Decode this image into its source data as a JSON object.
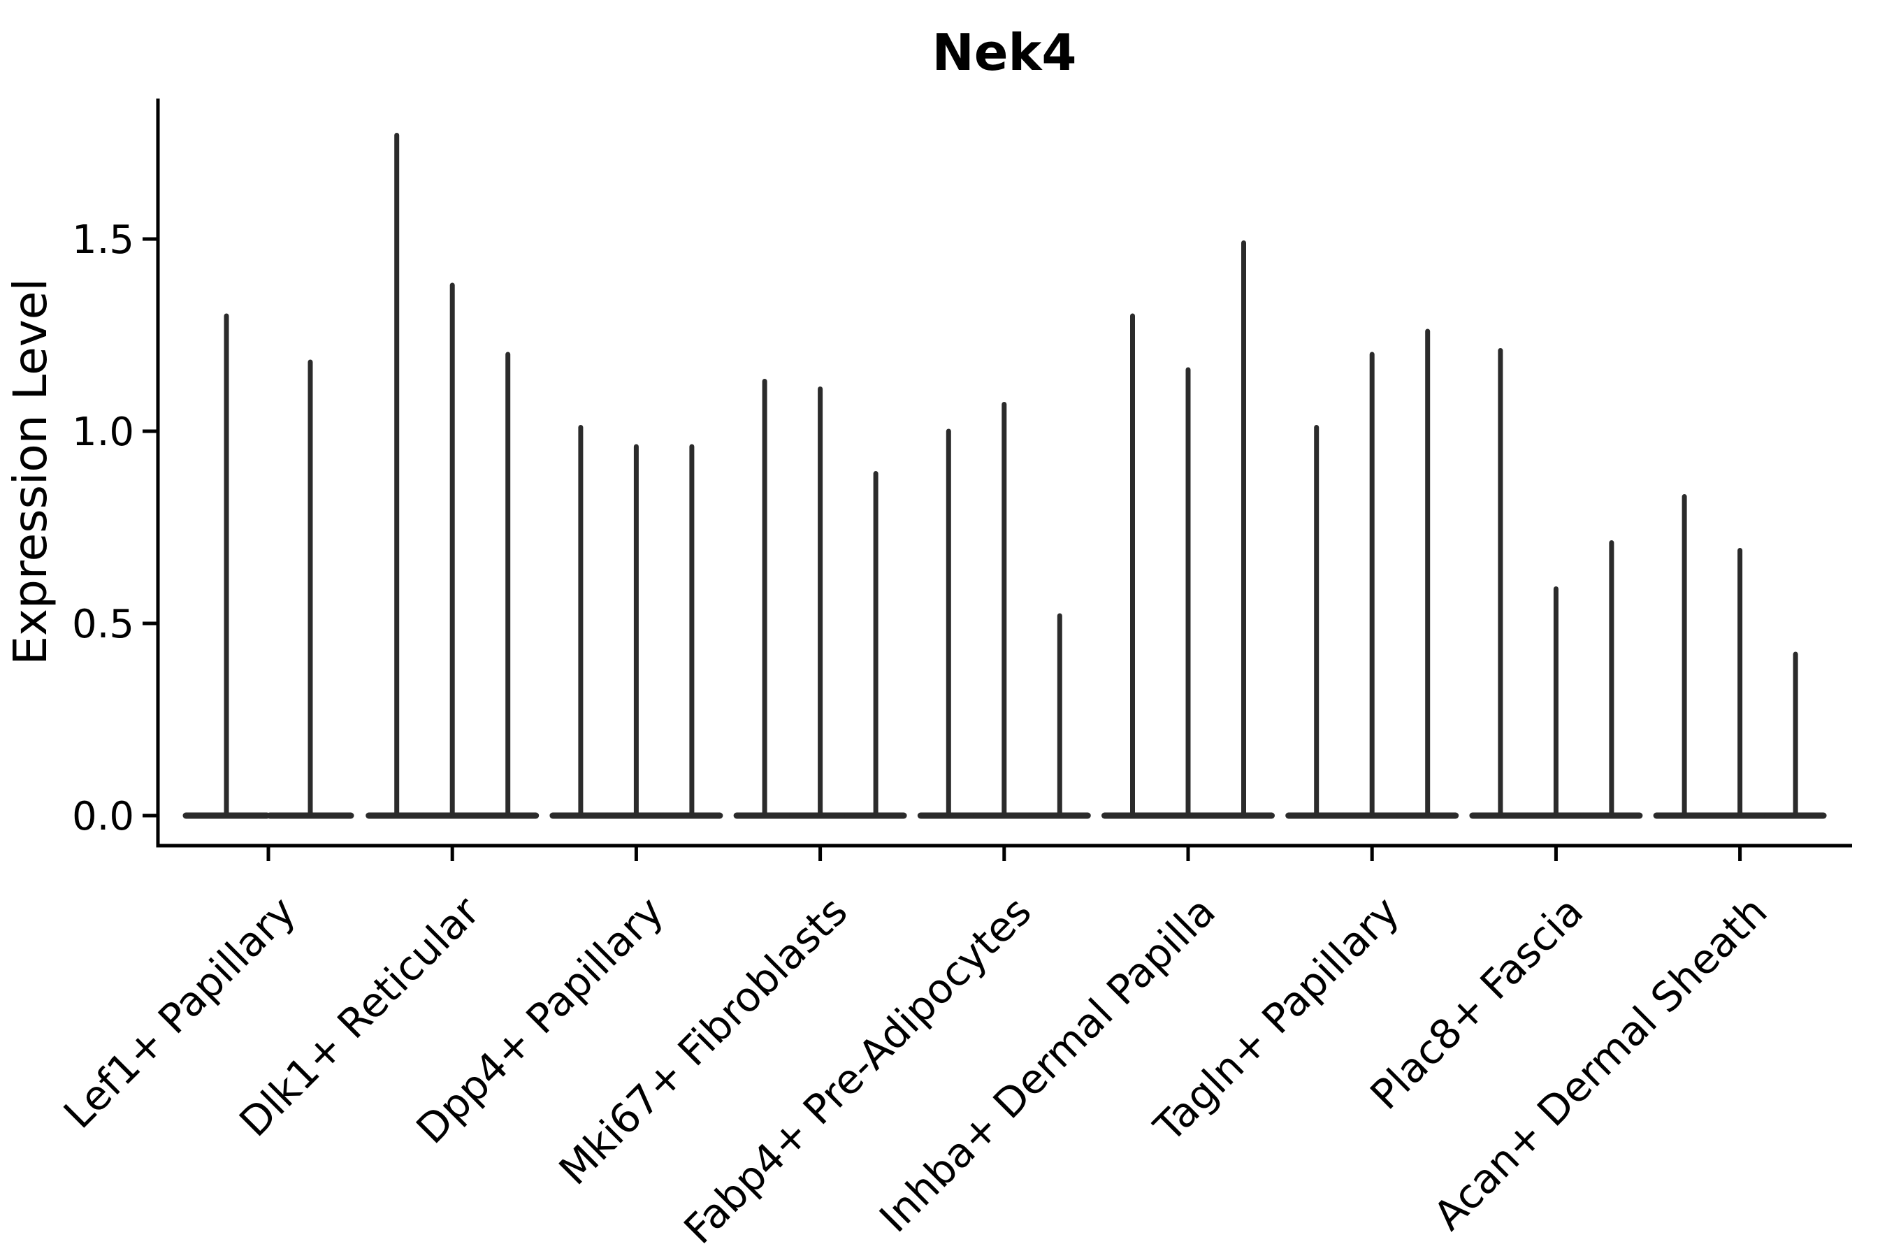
{
  "colors": {
    "violin": "#2b2b2b",
    "axis": "#000000",
    "background": "#ffffff"
  },
  "chart_data": {
    "type": "violin",
    "title": "Nek4",
    "xlabel": "",
    "ylabel": "Expression Level",
    "ylim": [
      -0.08,
      1.87
    ],
    "yticks": [
      0,
      0.5,
      1.0,
      1.5
    ],
    "ytick_labels": [
      "0.0",
      "0.5",
      "1.0",
      "1.5"
    ],
    "grid": false,
    "legend": "none",
    "description": "Violin plot of Nek4 expression; each category holds narrow violins collapsed at 0 with a thin spike rising to the maximum expression value.",
    "categories": [
      "Lef1+ Papillary",
      "Dlk1+ Reticular",
      "Dpp4+ Papillary",
      "Mki67+ Fibroblasts",
      "Fabp4+ Pre-Adipocytes",
      "Inhba+ Dermal Papilla",
      "Tagln+ Papillary",
      "Plac8+ Fascia",
      "Acan+ Dermal Sheath"
    ],
    "groups": [
      {
        "category": "Lef1+ Papillary",
        "violin_maxima": [
          1.3,
          1.18
        ]
      },
      {
        "category": "Dlk1+ Reticular",
        "violin_maxima": [
          1.77,
          1.38,
          1.2
        ]
      },
      {
        "category": "Dpp4+ Papillary",
        "violin_maxima": [
          1.01,
          0.96,
          0.96
        ]
      },
      {
        "category": "Mki67+ Fibroblasts",
        "violin_maxima": [
          1.13,
          1.11,
          0.89
        ]
      },
      {
        "category": "Fabp4+ Pre-Adipocytes",
        "violin_maxima": [
          1.0,
          1.07,
          0.52
        ]
      },
      {
        "category": "Inhba+ Dermal Papilla",
        "violin_maxima": [
          1.3,
          1.16,
          1.49
        ]
      },
      {
        "category": "Tagln+ Papillary",
        "violin_maxima": [
          1.01,
          1.2,
          1.26
        ]
      },
      {
        "category": "Plac8+ Fascia",
        "violin_maxima": [
          1.21,
          0.59,
          0.71
        ]
      },
      {
        "category": "Acan+ Dermal Sheath",
        "violin_maxima": [
          0.83,
          0.69,
          0.42
        ]
      }
    ],
    "baseline_value": 0.0
  }
}
